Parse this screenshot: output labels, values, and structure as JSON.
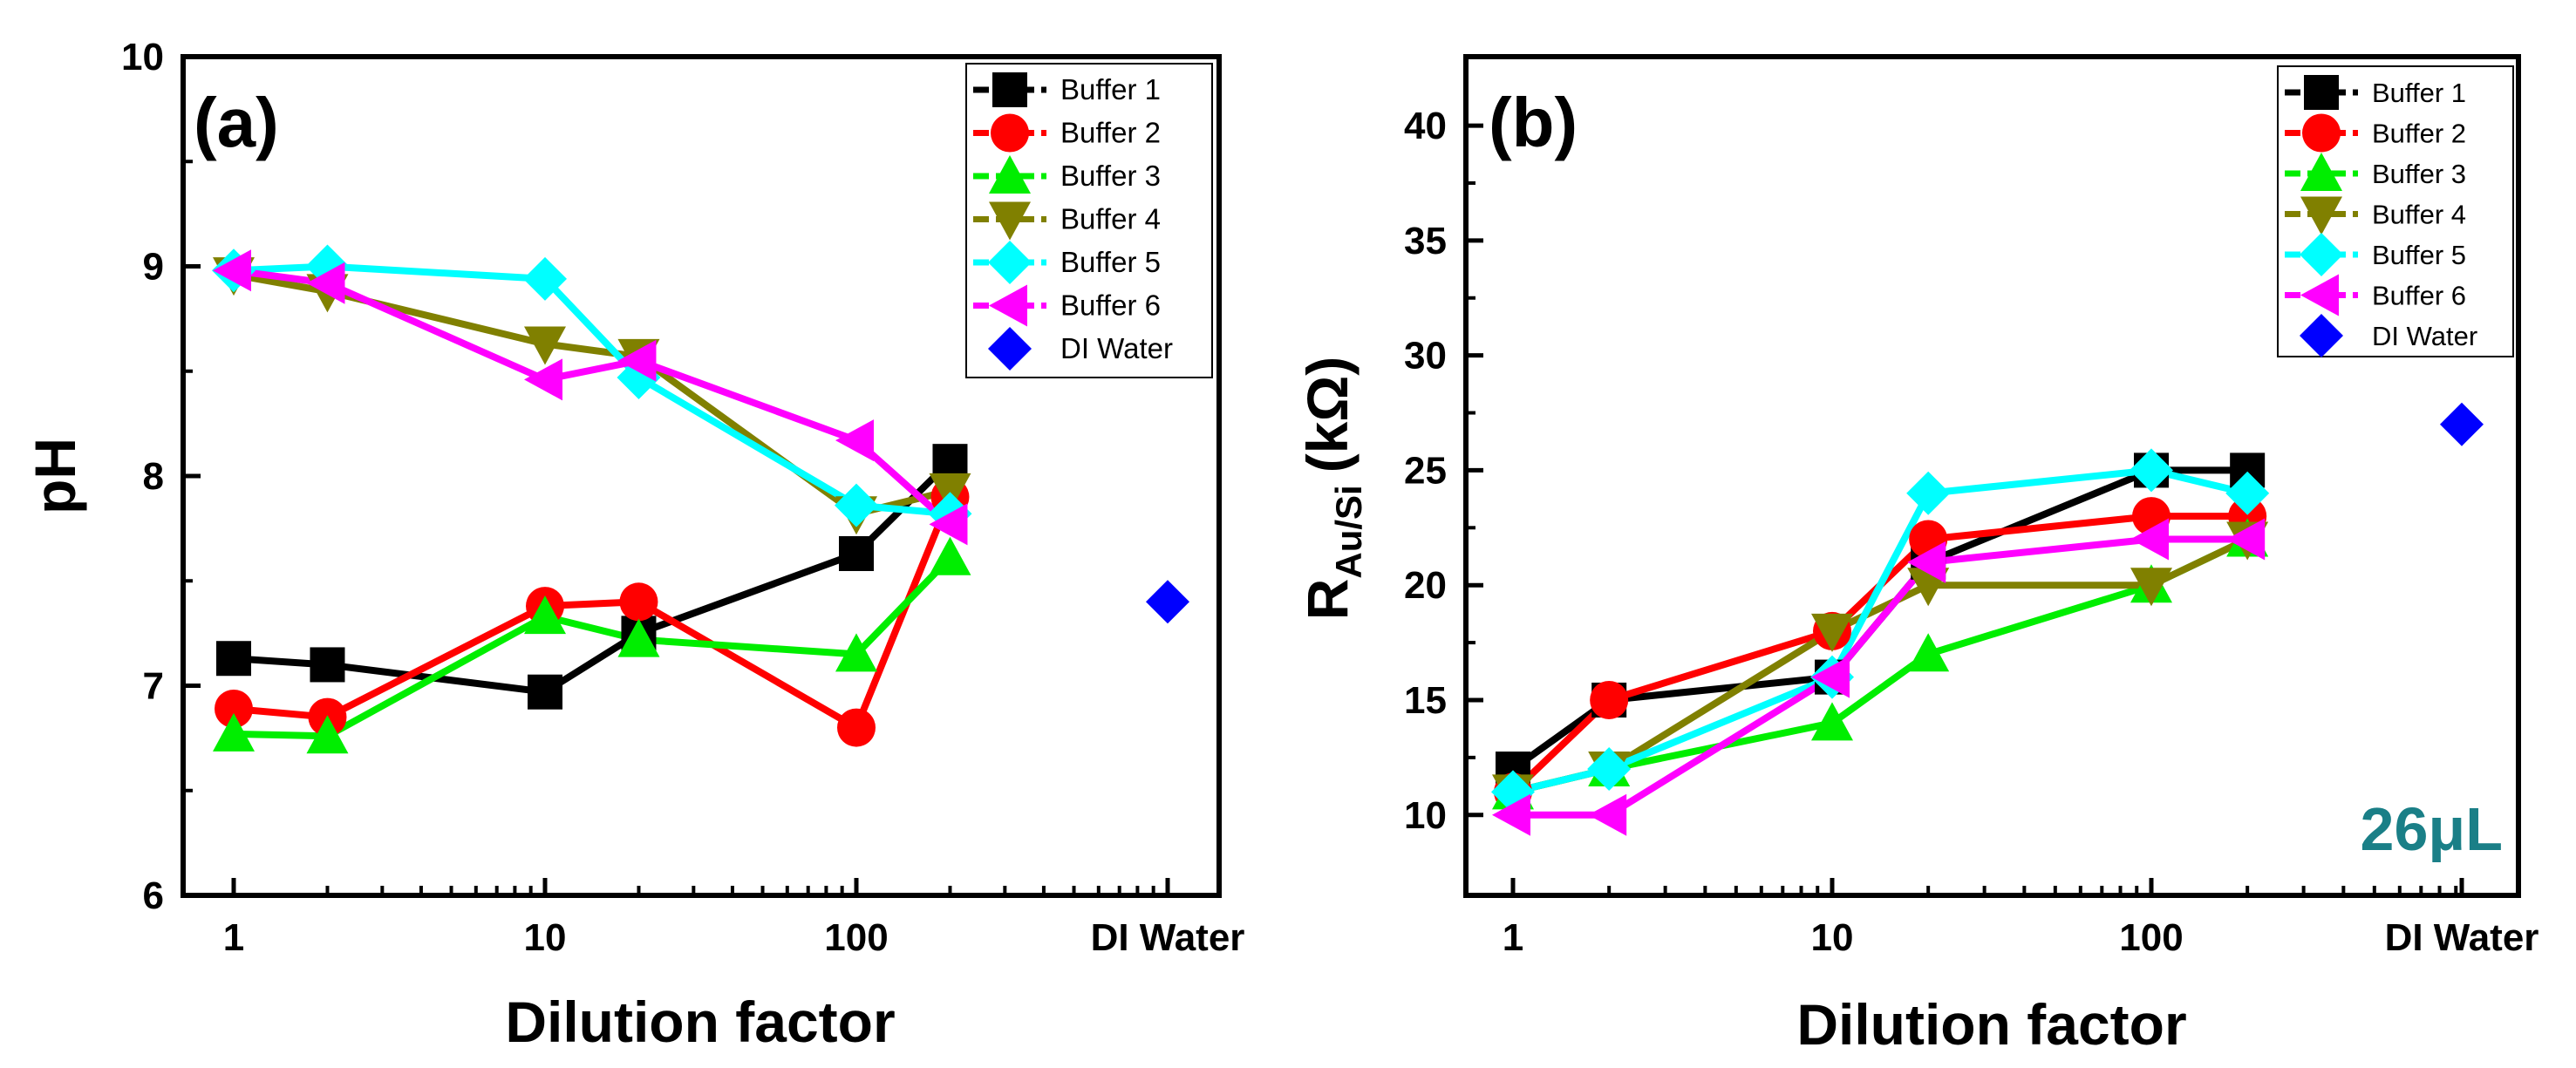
{
  "chart_data": [
    {
      "type": "line",
      "panel_label": "(a)",
      "xlabel": "Dilution factor",
      "ylabel": "pH",
      "x_scale": "log",
      "x_tick_labels": [
        "1",
        "10",
        "100",
        "DI Water"
      ],
      "y_tick_labels": [
        "6",
        "7",
        "8",
        "9",
        "10"
      ],
      "ylim": [
        6,
        10
      ],
      "legend_position": "top-right",
      "series": [
        {
          "name": "Buffer 1",
          "color": "#000000",
          "marker": "square",
          "x": [
            1,
            2,
            10,
            20,
            100,
            200
          ],
          "values": [
            7.13,
            7.1,
            6.97,
            7.25,
            7.63,
            8.07
          ]
        },
        {
          "name": "Buffer 2",
          "color": "#ff0000",
          "marker": "circle",
          "x": [
            1,
            2,
            10,
            20,
            100,
            200
          ],
          "values": [
            6.89,
            6.85,
            7.38,
            7.4,
            6.8,
            7.9
          ]
        },
        {
          "name": "Buffer 3",
          "color": "#00ee00",
          "marker": "triangle-up",
          "x": [
            1,
            2,
            10,
            20,
            100,
            200
          ],
          "values": [
            6.77,
            6.76,
            7.33,
            7.22,
            7.15,
            7.61
          ]
        },
        {
          "name": "Buffer 4",
          "color": "#808000",
          "marker": "triangle-down",
          "x": [
            1,
            2,
            10,
            20,
            100,
            200
          ],
          "values": [
            8.96,
            8.88,
            8.63,
            8.57,
            7.82,
            7.93
          ]
        },
        {
          "name": "Buffer 5",
          "color": "#00ffff",
          "marker": "diamond",
          "x": [
            1,
            2,
            10,
            20,
            100,
            200
          ],
          "values": [
            8.98,
            9.0,
            8.94,
            8.47,
            7.86,
            7.82
          ]
        },
        {
          "name": "Buffer 6",
          "color": "#ff00ff",
          "marker": "triangle-left",
          "x": [
            1,
            2,
            10,
            20,
            100,
            200
          ],
          "values": [
            8.98,
            8.92,
            8.46,
            8.55,
            8.17,
            7.77
          ]
        },
        {
          "name": "DI Water",
          "color": "#0000ff",
          "marker": "diamond",
          "x": [
            "DI Water"
          ],
          "values": [
            7.4
          ]
        }
      ]
    },
    {
      "type": "line",
      "panel_label": "(b)",
      "xlabel": "Dilution factor",
      "ylabel_main": "R",
      "ylabel_sub": "Au/Si",
      "ylabel_unit": "(kΩ)",
      "x_scale": "log",
      "x_tick_labels": [
        "1",
        "10",
        "100",
        "DI Water"
      ],
      "y_tick_labels": [
        "10",
        "15",
        "20",
        "25",
        "30",
        "35",
        "40"
      ],
      "ylim": [
        6.5,
        43
      ],
      "legend_position": "top-right",
      "annotation": "26μL",
      "series": [
        {
          "name": "Buffer 1",
          "color": "#000000",
          "marker": "square",
          "x": [
            1,
            2,
            10,
            20,
            100,
            200
          ],
          "values": [
            12,
            15,
            16,
            21,
            25,
            25
          ]
        },
        {
          "name": "Buffer 2",
          "color": "#ff0000",
          "marker": "circle",
          "x": [
            1,
            2,
            10,
            20,
            100,
            200
          ],
          "values": [
            11,
            15,
            18,
            22,
            23,
            23
          ]
        },
        {
          "name": "Buffer 3",
          "color": "#00ee00",
          "marker": "triangle-up",
          "x": [
            1,
            2,
            10,
            20,
            100,
            200
          ],
          "values": [
            11,
            12,
            14,
            17,
            20,
            22
          ]
        },
        {
          "name": "Buffer 4",
          "color": "#808000",
          "marker": "triangle-down",
          "x": [
            1,
            2,
            10,
            20,
            100,
            200
          ],
          "values": [
            11,
            12,
            18,
            20,
            20,
            22
          ]
        },
        {
          "name": "Buffer 5",
          "color": "#00ffff",
          "marker": "diamond",
          "x": [
            1,
            2,
            10,
            20,
            100,
            200
          ],
          "values": [
            11,
            12,
            16,
            24,
            25,
            24
          ]
        },
        {
          "name": "Buffer 6",
          "color": "#ff00ff",
          "marker": "triangle-left",
          "x": [
            1,
            2,
            10,
            20,
            100,
            200
          ],
          "values": [
            10,
            10,
            16,
            21,
            22,
            22
          ]
        },
        {
          "name": "DI Water",
          "color": "#0000ff",
          "marker": "diamond",
          "x": [
            "DI Water"
          ],
          "values": [
            27
          ]
        }
      ]
    }
  ]
}
